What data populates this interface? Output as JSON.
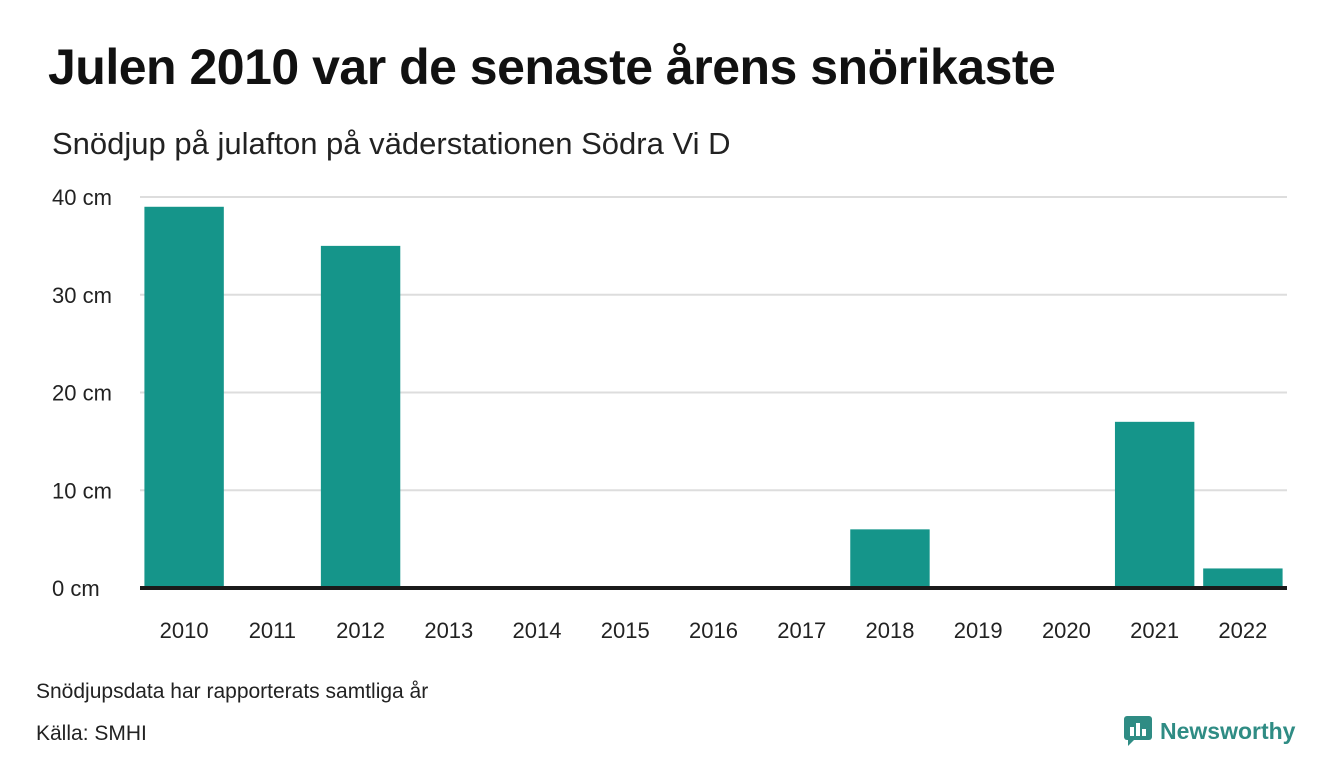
{
  "title": "Julen 2010 var de senaste årens snörikaste",
  "subtitle": "Snödjup på julafton på väderstationen Södra Vi D",
  "note": "Snödjupsdata har rapporterats samtliga år",
  "source": "Källa: SMHI",
  "brand": {
    "name": "Newsworthy",
    "icon": "newsworthy-logo-icon",
    "color": "#2f8c84"
  },
  "colors": {
    "bar": "#15958a",
    "grid": "#dddddd",
    "baseline": "#1a1a1a"
  },
  "chart_data": {
    "type": "bar",
    "categories": [
      "2010",
      "2011",
      "2012",
      "2013",
      "2014",
      "2015",
      "2016",
      "2017",
      "2018",
      "2019",
      "2020",
      "2021",
      "2022"
    ],
    "values": [
      39,
      0,
      35,
      0,
      0,
      0,
      0,
      0,
      6,
      0,
      0,
      17,
      2
    ],
    "ylim": [
      0,
      40
    ],
    "yticks": [
      0,
      10,
      20,
      30,
      40
    ],
    "ytick_labels": [
      "0 cm",
      "10 cm",
      "20 cm",
      "30 cm",
      "40 cm"
    ],
    "grid": true,
    "legend": "none"
  }
}
